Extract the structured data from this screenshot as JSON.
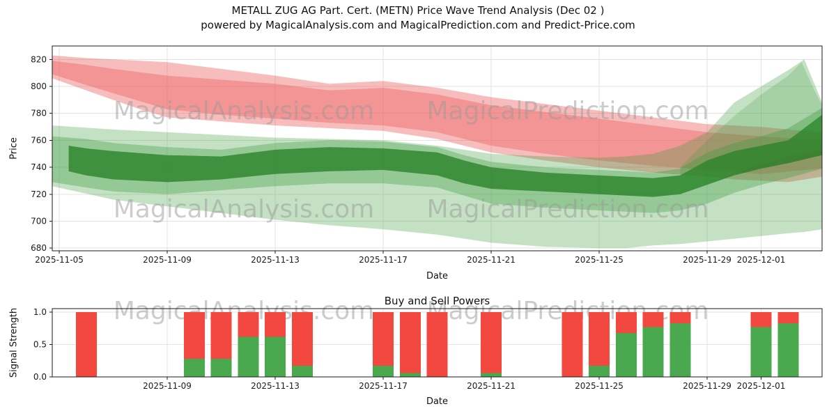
{
  "header": {
    "title": "METALL ZUG AG Part. Cert. (METN) Price Wave Trend Analysis (Dec 02 )",
    "subtitle": "powered by MagicalAnalysis.com and MagicalPrediction.com and Predict-Price.com"
  },
  "watermarks": {
    "left_text": "MagicalAnalysis.com",
    "right_text": "MagicalPrediction.com",
    "color": "#999999",
    "opacity": 0.5
  },
  "chart_data": [
    {
      "type": "area",
      "name": "price-wave-trend",
      "ylabel": "Price",
      "xlabel": "Date",
      "ylim": [
        678,
        830
      ],
      "xlim_days": [
        -0.26,
        28.26
      ],
      "grid": true,
      "yticks": [
        680,
        700,
        720,
        740,
        760,
        780,
        800,
        820
      ],
      "xticks": [
        {
          "label": "2025-11-05",
          "day": 0
        },
        {
          "label": "2025-11-09",
          "day": 4
        },
        {
          "label": "2025-11-13",
          "day": 8
        },
        {
          "label": "2025-11-17",
          "day": 12
        },
        {
          "label": "2025-11-21",
          "day": 16
        },
        {
          "label": "2025-11-25",
          "day": 20
        },
        {
          "label": "2025-11-29",
          "day": 24
        },
        {
          "label": "2025-12-01",
          "day": 26
        }
      ],
      "bands": [
        {
          "name": "red-forecast-outer",
          "color": "#ec5858",
          "opacity": 0.4,
          "days": [
            -0.26,
            1,
            2,
            3,
            4,
            6,
            8,
            10,
            12,
            14,
            16,
            18,
            20,
            22,
            24,
            25,
            26,
            27,
            28.26
          ],
          "upper": [
            823,
            821,
            820,
            819,
            818,
            813,
            808,
            802,
            804,
            799,
            792,
            787,
            782,
            777,
            772,
            771,
            770,
            768,
            766
          ],
          "lower": [
            806,
            797,
            790,
            783,
            777,
            774,
            771,
            769,
            767,
            761,
            751,
            745,
            740,
            736,
            733,
            731,
            730,
            729,
            733
          ]
        },
        {
          "name": "red-forecast-core",
          "color": "#ec5858",
          "opacity": 0.38,
          "days": [
            -0.26,
            1,
            2,
            4,
            6,
            8,
            10,
            12,
            14,
            16,
            18,
            20,
            22,
            24,
            26,
            28.26
          ],
          "upper": [
            819,
            816,
            813,
            808,
            805,
            802,
            797,
            799,
            794,
            786,
            781,
            776,
            771,
            766,
            763,
            760
          ],
          "lower": [
            809,
            801,
            795,
            783,
            779,
            776,
            773,
            771,
            766,
            756,
            750,
            745,
            741,
            738,
            735,
            739
          ]
        },
        {
          "name": "green-wave-wide",
          "color": "#3d9b3d",
          "opacity": 0.3,
          "days": [
            -0.26,
            2,
            4,
            6,
            8,
            10,
            12,
            14,
            16,
            18,
            20,
            21,
            22,
            23,
            24,
            25,
            26,
            27,
            27.6,
            28.26
          ],
          "upper": [
            771,
            768,
            766,
            764,
            762,
            761,
            760,
            756,
            750,
            748,
            747,
            748,
            750,
            756,
            766,
            788,
            800,
            812,
            820,
            788
          ],
          "lower": [
            726,
            716,
            711,
            706,
            701,
            697,
            694,
            690,
            684,
            681,
            680,
            680,
            682,
            683,
            685,
            687,
            689,
            691,
            692,
            694
          ]
        },
        {
          "name": "green-wave-mid",
          "color": "#3d9b3d",
          "opacity": 0.35,
          "days": [
            -0.26,
            1,
            2,
            4,
            6,
            8,
            10,
            12,
            14,
            15,
            16,
            18,
            20,
            22,
            23,
            24,
            25,
            26,
            27,
            28.26
          ],
          "upper": [
            763,
            761,
            758,
            755,
            753,
            758,
            760,
            759,
            755,
            749,
            744,
            740,
            738,
            736,
            739,
            751,
            758,
            763,
            769,
            784
          ],
          "lower": [
            729,
            725,
            722,
            720,
            723,
            726,
            728,
            728,
            725,
            719,
            713,
            710,
            708,
            706,
            708,
            713,
            721,
            727,
            732,
            739
          ]
        },
        {
          "name": "green-wave-core",
          "color": "#1e7a1e",
          "opacity": 0.72,
          "days": [
            0.35,
            1,
            2,
            4,
            6,
            8,
            10,
            12,
            14,
            15,
            16,
            18,
            20,
            22,
            23,
            24,
            25,
            26,
            27,
            28.26
          ],
          "upper": [
            756,
            754,
            752,
            749,
            748,
            753,
            755,
            754,
            751,
            745,
            740,
            736,
            734,
            732,
            734,
            745,
            752,
            756,
            760,
            779
          ],
          "lower": [
            737,
            734,
            731,
            729,
            731,
            735,
            737,
            738,
            734,
            728,
            724,
            722,
            720,
            718,
            720,
            727,
            734,
            739,
            743,
            749
          ]
        },
        {
          "name": "green-fan-right",
          "color": "#3d9b3d",
          "opacity": 0.22,
          "days": [
            23,
            24,
            25,
            26,
            27,
            27.5,
            28,
            28.26
          ],
          "upper": [
            740,
            760,
            778,
            794,
            808,
            818,
            796,
            786
          ],
          "lower": [
            720,
            728,
            736,
            742,
            748,
            750,
            752,
            755
          ]
        }
      ]
    },
    {
      "type": "bar",
      "name": "buy-sell-powers",
      "title": "Buy and Sell Powers",
      "ylabel": "Signal Strength",
      "xlabel": "Date",
      "ylim": [
        0,
        1.05
      ],
      "xlim_days": [
        -0.26,
        28.26
      ],
      "grid": true,
      "yticks": [
        {
          "label": "0.0",
          "value": 0.0
        },
        {
          "label": "0.5",
          "value": 0.5
        },
        {
          "label": "1.0",
          "value": 1.0
        }
      ],
      "xticks": [
        {
          "label": "2025-11-09",
          "day": 4
        },
        {
          "label": "2025-11-13",
          "day": 8
        },
        {
          "label": "2025-11-17",
          "day": 12
        },
        {
          "label": "2025-11-21",
          "day": 16
        },
        {
          "label": "2025-11-25",
          "day": 20
        },
        {
          "label": "2025-11-29",
          "day": 24
        },
        {
          "label": "2025-12-01",
          "day": 26
        }
      ],
      "colors": {
        "sell": "#f24840",
        "buy": "#4aa94e"
      },
      "bars": [
        {
          "date": "2025-11-06",
          "day": 1,
          "sell": 1.0,
          "buy": 0.0
        },
        {
          "date": "2025-11-10",
          "day": 5,
          "sell": 1.0,
          "buy": 0.28
        },
        {
          "date": "2025-11-11",
          "day": 6,
          "sell": 1.0,
          "buy": 0.28
        },
        {
          "date": "2025-11-12",
          "day": 7,
          "sell": 1.0,
          "buy": 0.62
        },
        {
          "date": "2025-11-13",
          "day": 8,
          "sell": 1.0,
          "buy": 0.62
        },
        {
          "date": "2025-11-14",
          "day": 9,
          "sell": 1.0,
          "buy": 0.17
        },
        {
          "date": "2025-11-17",
          "day": 12,
          "sell": 1.0,
          "buy": 0.17
        },
        {
          "date": "2025-11-18",
          "day": 13,
          "sell": 1.0,
          "buy": 0.06
        },
        {
          "date": "2025-11-19",
          "day": 14,
          "sell": 1.0,
          "buy": 0.0
        },
        {
          "date": "2025-11-21",
          "day": 16,
          "sell": 1.0,
          "buy": 0.06
        },
        {
          "date": "2025-11-24",
          "day": 19,
          "sell": 1.0,
          "buy": 0.0
        },
        {
          "date": "2025-11-25",
          "day": 20,
          "sell": 1.0,
          "buy": 0.17
        },
        {
          "date": "2025-11-26",
          "day": 21,
          "sell": 1.0,
          "buy": 0.68
        },
        {
          "date": "2025-11-27",
          "day": 22,
          "sell": 1.0,
          "buy": 0.77
        },
        {
          "date": "2025-11-28",
          "day": 23,
          "sell": 1.0,
          "buy": 0.83
        },
        {
          "date": "2025-12-01",
          "day": 26,
          "sell": 1.0,
          "buy": 0.77
        },
        {
          "date": "2025-12-02",
          "day": 27,
          "sell": 1.0,
          "buy": 0.83
        }
      ]
    }
  ]
}
